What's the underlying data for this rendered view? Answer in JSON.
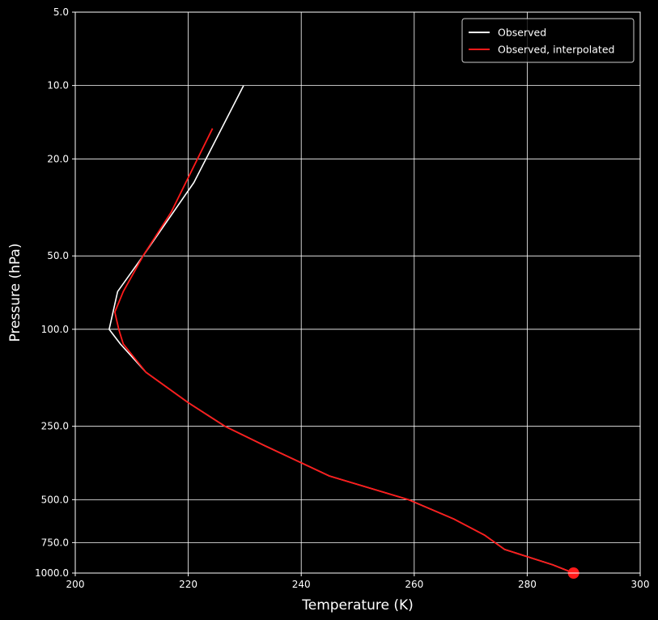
{
  "chart_data": {
    "type": "line",
    "title": "",
    "xlabel": "Temperature (K)",
    "ylabel": "Pressure (hPa)",
    "xlim": [
      200,
      300
    ],
    "ylim": [
      1000,
      5
    ],
    "yscale": "log",
    "grid": true,
    "legend_position": "top-right",
    "background": "#000000",
    "xticks": [
      "200",
      "220",
      "240",
      "260",
      "280",
      "300"
    ],
    "xtick_values": [
      200,
      220,
      240,
      260,
      280,
      300
    ],
    "yticks": [
      "5.0",
      "10.0",
      "20.0",
      "50.0",
      "100.0",
      "250.0",
      "500.0",
      "750.0",
      "1000.0"
    ],
    "ytick_values": [
      5,
      10,
      20,
      50,
      100,
      250,
      500,
      750,
      1000
    ],
    "series": [
      {
        "name": "Observed",
        "color": "#ffffff",
        "points": [
          [
            288.2,
            1000
          ],
          [
            284.5,
            925
          ],
          [
            276.0,
            800
          ],
          [
            272.5,
            700
          ],
          [
            267.0,
            600
          ],
          [
            259.0,
            500
          ],
          [
            245.0,
            400
          ],
          [
            233.5,
            300
          ],
          [
            226.5,
            250
          ],
          [
            220.0,
            200
          ],
          [
            212.5,
            150
          ],
          [
            208.0,
            115
          ],
          [
            206.0,
            100
          ],
          [
            207.5,
            70
          ],
          [
            212.0,
            50
          ],
          [
            221.0,
            25
          ],
          [
            229.8,
            10
          ]
        ]
      },
      {
        "name": "Observed, interpolated",
        "color": "#ff1a1a",
        "points": [
          [
            288.2,
            1000
          ],
          [
            284.5,
            925
          ],
          [
            276.0,
            800
          ],
          [
            272.5,
            700
          ],
          [
            267.0,
            600
          ],
          [
            259.0,
            500
          ],
          [
            245.0,
            400
          ],
          [
            233.5,
            300
          ],
          [
            226.5,
            250
          ],
          [
            220.0,
            200
          ],
          [
            212.5,
            150
          ],
          [
            208.5,
            115
          ],
          [
            207.7,
            100
          ],
          [
            207.0,
            85
          ],
          [
            208.5,
            70
          ],
          [
            212.0,
            50
          ],
          [
            217.0,
            33
          ],
          [
            224.3,
            15
          ]
        ]
      }
    ],
    "marker": {
      "series": "Observed, interpolated",
      "point": [
        288.2,
        1000
      ],
      "color": "#ff1a1a"
    }
  }
}
